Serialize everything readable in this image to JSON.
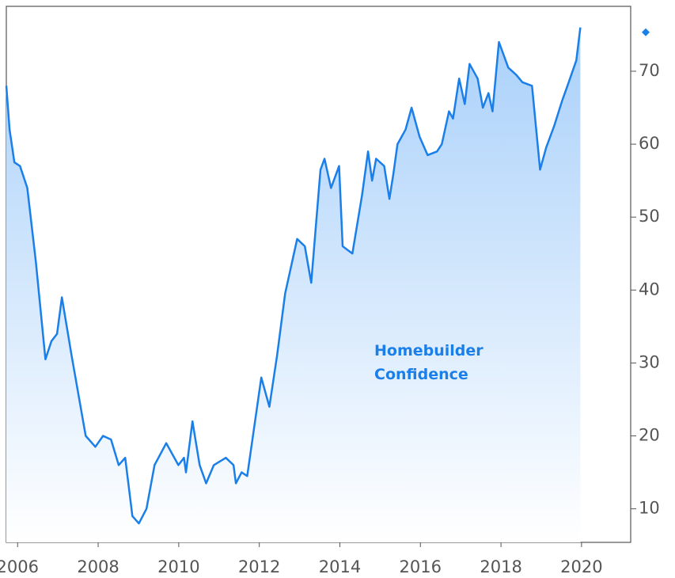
{
  "chart_data": {
    "type": "area",
    "series": [
      {
        "name": "Homebuilder Confidence",
        "color": "#1a7fe8",
        "x": [
          2005.72,
          2005.8,
          2005.92,
          2006.06,
          2006.24,
          2006.45,
          2006.69,
          2006.84,
          2006.98,
          2007.1,
          2007.34,
          2007.69,
          2007.93,
          2008.12,
          2008.32,
          2008.51,
          2008.67,
          2008.85,
          2009.01,
          2009.2,
          2009.4,
          2009.69,
          2009.99,
          2010.13,
          2010.18,
          2010.34,
          2010.52,
          2010.68,
          2010.87,
          2011.17,
          2011.36,
          2011.42,
          2011.56,
          2011.7,
          2012.05,
          2012.25,
          2012.44,
          2012.64,
          2012.94,
          2013.13,
          2013.29,
          2013.52,
          2013.62,
          2013.78,
          2013.98,
          2014.07,
          2014.31,
          2014.55,
          2014.7,
          2014.8,
          2014.9,
          2015.1,
          2015.23,
          2015.33,
          2015.43,
          2015.63,
          2015.78,
          2015.98,
          2016.18,
          2016.41,
          2016.53,
          2016.71,
          2016.81,
          2016.96,
          2017.1,
          2017.22,
          2017.42,
          2017.55,
          2017.69,
          2017.79,
          2017.95,
          2018.18,
          2018.38,
          2018.53,
          2018.77,
          2018.97,
          2019.12,
          2019.32,
          2019.52,
          2019.65,
          2019.87,
          2019.97
        ],
        "values": [
          68,
          62,
          57.5,
          57,
          54,
          44,
          30.5,
          33,
          34,
          39,
          31,
          20,
          18.5,
          20,
          19.5,
          16,
          17,
          9,
          8,
          10,
          16,
          19,
          16,
          17,
          15,
          22,
          16,
          13.5,
          16,
          17,
          16,
          13.5,
          15,
          14.5,
          28,
          24,
          31,
          39.5,
          47,
          46,
          41,
          56.5,
          58,
          54,
          57,
          46,
          45,
          53,
          59,
          55,
          58,
          57,
          52.5,
          56,
          60,
          62,
          65,
          61,
          58.5,
          59,
          60,
          64.5,
          63.5,
          69,
          65.5,
          71,
          69,
          65,
          67,
          64.5,
          74,
          70.5,
          69.5,
          68.5,
          68,
          56.5,
          59.5,
          62.5,
          66,
          68,
          71.5,
          76
        ]
      }
    ],
    "xlim": [
      2005.72,
      2021.22
    ],
    "xticks": [
      2006,
      2008,
      2010,
      2012,
      2014,
      2016,
      2018,
      2020
    ],
    "ylim": [
      5.4,
      78.9
    ],
    "yticks": [
      10,
      20,
      30,
      40,
      50,
      60,
      70
    ]
  }
}
